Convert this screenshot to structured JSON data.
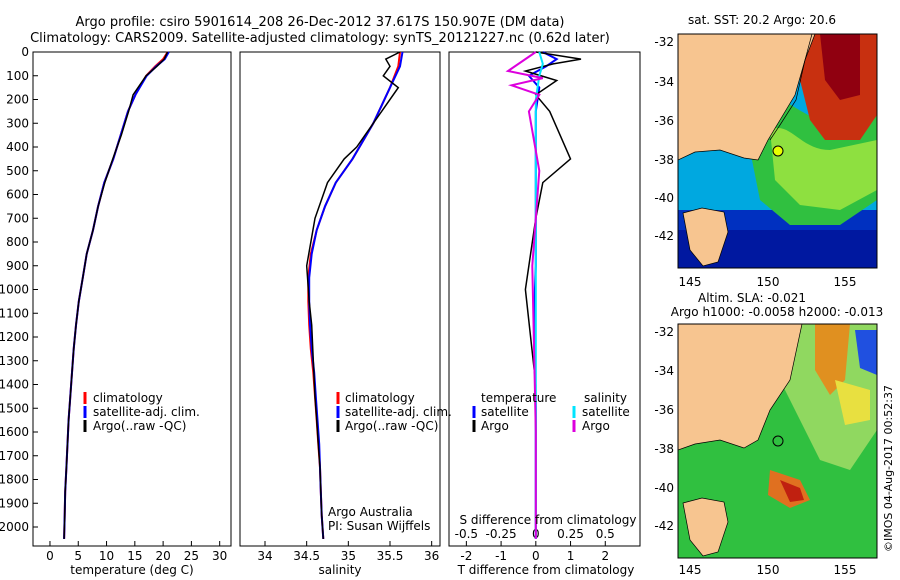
{
  "titles": {
    "line1": "Argo profile: csiro 5901614_208 26-Dec-2012 37.617S 150.907E (DM data)",
    "line2": "Climatology: CARS2009. Satellite-adjusted climatology: synTS_20121227.nc (0.62d later)"
  },
  "colors": {
    "climatology": "#ff0000",
    "satellite": "#0000ff",
    "argo": "#000000",
    "satellite_s": "#00e5ff",
    "argo_s": "#dd00dd",
    "land": "#f7c590"
  },
  "panels": {
    "temperature": {
      "xlabel": "temperature (deg C)",
      "legend": [
        "climatology",
        "satellite-adj. clim.",
        "Argo(..raw -QC)"
      ]
    },
    "salinity": {
      "xlabel": "salinity",
      "legend": [
        "climatology",
        "satellite-adj. clim.",
        "Argo(..raw -QC)"
      ],
      "note1": "Argo Australia",
      "note2": "PI: Susan Wijffels"
    },
    "difference": {
      "xlabel": "T difference from climatology",
      "xlabel_top": "S difference from climatology",
      "legend_t_head": "temperature",
      "legend_s_head": "salinity",
      "legend_t": [
        "satellite",
        "Argo"
      ],
      "legend_s": [
        "satellite",
        "Argo"
      ]
    }
  },
  "maps": {
    "sst_title": "sat. SST: 20.2 Argo: 20.6",
    "sla_title1": "Altim. SLA: -0.021",
    "sla_title2": "Argo h1000: -0.0058 h2000: -0.013",
    "credit": "©IMOS 04-Aug-2017 00:52:37"
  },
  "chart_data": [
    {
      "type": "line",
      "title": "",
      "xlabel": "temperature (deg C)",
      "ylabel": "",
      "xlim": [
        -3,
        32
      ],
      "ylim": [
        2080,
        0
      ],
      "xticks": [
        0,
        5,
        10,
        15,
        20,
        25,
        30
      ],
      "yticks": [
        0,
        100,
        200,
        300,
        400,
        500,
        600,
        700,
        800,
        900,
        1000,
        1100,
        1200,
        1300,
        1400,
        1500,
        1600,
        1700,
        1800,
        1900,
        2000
      ],
      "series": [
        {
          "name": "climatology",
          "color": "#ff0000",
          "x": [
            20.8,
            20.0,
            18.6,
            17.0,
            15.1,
            13.8,
            12.5,
            11.2,
            9.6,
            8.5,
            7.6,
            6.5,
            5.8,
            5.1,
            4.6,
            4.2,
            3.9,
            3.6,
            3.3,
            3.1,
            2.9,
            2.7,
            2.6,
            2.5
          ],
          "y": [
            0,
            30,
            60,
            100,
            180,
            250,
            350,
            450,
            550,
            650,
            750,
            850,
            950,
            1050,
            1150,
            1250,
            1350,
            1450,
            1550,
            1650,
            1750,
            1850,
            1950,
            2050
          ]
        },
        {
          "name": "satellite-adj. clim.",
          "color": "#0000ff",
          "x": [
            21.0,
            20.3,
            18.8,
            17.1,
            15.1,
            13.8,
            12.5,
            11.2,
            9.6,
            8.5,
            7.6,
            6.5,
            5.8,
            5.1,
            4.6,
            4.2,
            3.9,
            3.6,
            3.3,
            3.1,
            2.9,
            2.7,
            2.6,
            2.5
          ],
          "y": [
            0,
            30,
            60,
            100,
            180,
            250,
            350,
            450,
            550,
            650,
            750,
            850,
            950,
            1050,
            1150,
            1250,
            1350,
            1450,
            1550,
            1650,
            1750,
            1850,
            1950,
            2050
          ]
        },
        {
          "name": "Argo(..raw -QC)",
          "color": "#000000",
          "x": [
            20.8,
            20.2,
            18.9,
            17.0,
            14.7,
            13.9,
            12.6,
            11.1,
            9.7,
            8.5,
            7.6,
            6.5,
            5.8,
            5.1,
            4.6,
            4.2,
            3.9,
            3.6,
            3.3,
            3.1,
            2.9,
            2.7,
            2.6,
            2.5
          ],
          "y": [
            0,
            30,
            60,
            100,
            180,
            250,
            350,
            450,
            550,
            650,
            750,
            850,
            950,
            1050,
            1150,
            1250,
            1350,
            1450,
            1550,
            1650,
            1750,
            1850,
            1950,
            2050
          ]
        }
      ]
    },
    {
      "type": "line",
      "title": "",
      "xlabel": "salinity",
      "ylabel": "",
      "xlim": [
        33.7,
        36.1
      ],
      "ylim": [
        2080,
        0
      ],
      "xticks": [
        34,
        34.5,
        35,
        35.5,
        36
      ],
      "series": [
        {
          "name": "climatology",
          "color": "#ff0000",
          "x": [
            35.62,
            35.6,
            35.5,
            35.3,
            35.05,
            34.85,
            34.72,
            34.62,
            34.55,
            34.52,
            34.52,
            34.53,
            34.55,
            34.58,
            34.6,
            34.62,
            34.64,
            34.66,
            34.67,
            34.68,
            34.7
          ],
          "y": [
            0,
            60,
            150,
            300,
            450,
            550,
            650,
            750,
            850,
            950,
            1050,
            1150,
            1250,
            1350,
            1450,
            1550,
            1650,
            1750,
            1850,
            1950,
            2050
          ]
        },
        {
          "name": "satellite-adj. clim.",
          "color": "#0000ff",
          "x": [
            35.65,
            35.62,
            35.5,
            35.3,
            35.05,
            34.85,
            34.72,
            34.62,
            34.56,
            34.53,
            34.53,
            34.54,
            34.56,
            34.59,
            34.61,
            34.63,
            34.65,
            34.66,
            34.67,
            34.68,
            34.7
          ],
          "y": [
            0,
            60,
            150,
            300,
            450,
            550,
            650,
            750,
            850,
            950,
            1050,
            1150,
            1250,
            1350,
            1450,
            1550,
            1650,
            1750,
            1850,
            1950,
            2050
          ]
        },
        {
          "name": "Argo(..raw -QC)",
          "color": "#000000",
          "x": [
            35.62,
            35.45,
            35.5,
            35.42,
            35.6,
            35.3,
            35.1,
            34.95,
            34.75,
            34.6,
            34.5,
            34.53,
            34.56,
            34.58,
            34.6,
            34.62,
            34.64,
            34.66,
            34.67,
            34.68,
            34.7
          ],
          "y": [
            0,
            30,
            60,
            100,
            150,
            300,
            400,
            450,
            550,
            700,
            900,
            1050,
            1150,
            1300,
            1450,
            1550,
            1650,
            1750,
            1850,
            1950,
            2050
          ]
        }
      ]
    },
    {
      "type": "line",
      "title": "",
      "xlabel": "T difference from climatology",
      "ylabel": "",
      "xlim": [
        -2.5,
        3
      ],
      "ylim": [
        2080,
        0
      ],
      "xticks": [
        -2,
        -1,
        0,
        1,
        2
      ],
      "xticks_top": [
        -0.5,
        -0.25,
        0,
        0.25,
        0.5
      ],
      "series": [
        {
          "name": "temperature satellite",
          "color": "#0000ff",
          "x": [
            0.2,
            0.6,
            0.3,
            -0.2,
            0.1,
            0.0,
            0.0,
            0.0,
            0.0,
            0.0,
            -0.05,
            0.0,
            0.0
          ],
          "y": [
            0,
            30,
            60,
            100,
            150,
            250,
            350,
            500,
            700,
            900,
            1100,
            1500,
            2050
          ]
        },
        {
          "name": "temperature Argo",
          "color": "#000000",
          "x": [
            0.0,
            1.3,
            0.5,
            -0.3,
            0.6,
            0.0,
            0.4,
            1.0,
            0.2,
            0.0,
            -0.3,
            0.0,
            0.0
          ],
          "y": [
            0,
            30,
            50,
            80,
            120,
            180,
            250,
            450,
            550,
            700,
            1000,
            1400,
            2050
          ]
        },
        {
          "name": "salinity satellite",
          "color": "#00e5ff",
          "x": [
            0.1,
            0.2,
            0.1,
            0.0,
            0.0,
            0.0,
            0.0,
            0.0
          ],
          "y": [
            0,
            50,
            100,
            200,
            400,
            800,
            1400,
            2050
          ]
        },
        {
          "name": "salinity Argo",
          "color": "#dd00dd",
          "x": [
            0.0,
            -0.8,
            0.2,
            -0.7,
            0.1,
            -0.2,
            0.1,
            -0.1,
            0.0,
            0.0
          ],
          "y": [
            0,
            80,
            110,
            140,
            180,
            250,
            500,
            900,
            1600,
            2050
          ]
        }
      ]
    }
  ]
}
